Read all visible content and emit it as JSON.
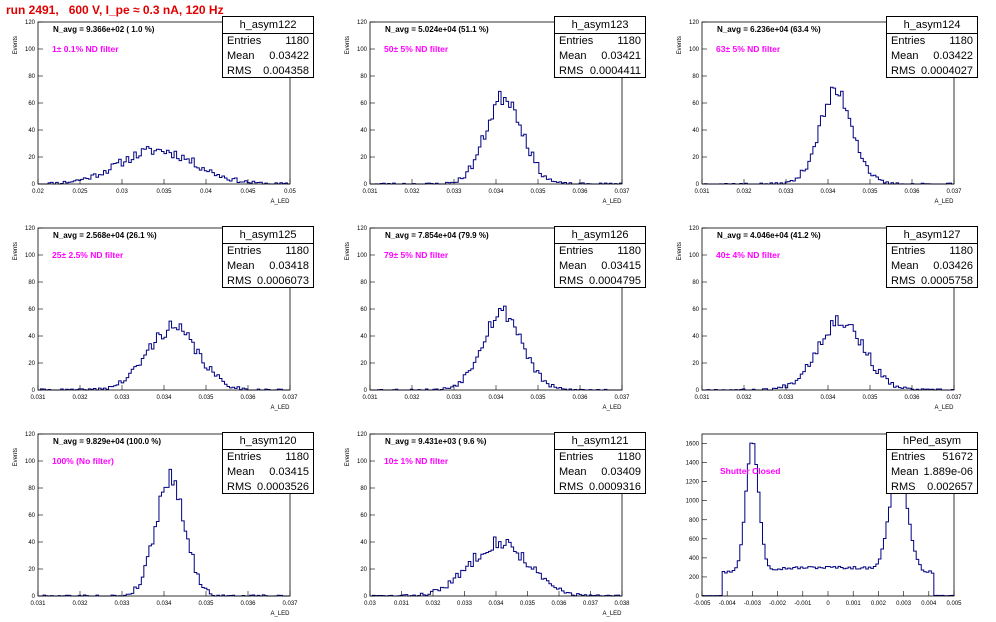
{
  "run_title": "run 2491,   600 V, I_pe ≈ 0.3 nA, 120 Hz",
  "colors": {
    "histogram": "#000080",
    "note": "#ff00ff",
    "run_title": "#e00000"
  },
  "stat_labels": {
    "entries": "Entries",
    "mean": "Mean",
    "rms": "RMS"
  },
  "chart_data": [
    {
      "type": "bar",
      "name": "h_asym122",
      "navg": "N_avg = 9.366e+02 ( 1.0 %)",
      "note": "1± 0.1% ND filter",
      "stats": {
        "entries": "1180",
        "mean": "0.03422",
        "rms": "0.004358"
      },
      "ylabel": "Events",
      "xlabel": "A_LED",
      "xlim": [
        0.02,
        0.05
      ],
      "ylim": [
        0,
        120
      ],
      "xticks": [
        0.02,
        0.025,
        0.03,
        0.035,
        0.04,
        0.045,
        0.05
      ],
      "xticklabels": [
        "0.02",
        "0.025",
        "0.03",
        "0.035",
        "0.04",
        "0.045",
        "0.05"
      ],
      "yticks": [
        0,
        20,
        40,
        60,
        80,
        100,
        120
      ],
      "mu": 0.0342,
      "sigma": 0.0045,
      "peak": 25,
      "seed": 11
    },
    {
      "type": "bar",
      "name": "h_asym123",
      "navg": "N_avg = 5.024e+04 (51.1 %)",
      "note": "50± 5% ND filter",
      "stats": {
        "entries": "1180",
        "mean": "0.03421",
        "rms": "0.0004411"
      },
      "ylabel": "Events",
      "xlabel": "A_LED",
      "xlim": [
        0.031,
        0.037
      ],
      "ylim": [
        0,
        120
      ],
      "xticks": [
        0.031,
        0.032,
        0.033,
        0.034,
        0.035,
        0.036,
        0.037
      ],
      "xticklabels": [
        "0.031",
        "0.032",
        "0.033",
        "0.034",
        "0.035",
        "0.036",
        "0.037"
      ],
      "yticks": [
        0,
        20,
        40,
        60,
        80,
        100,
        120
      ],
      "mu": 0.0342,
      "sigma": 0.00044,
      "peak": 65,
      "seed": 23
    },
    {
      "type": "bar",
      "name": "h_asym124",
      "navg": "N_avg = 6.236e+04 (63.4 %)",
      "note": "63± 5% ND filter",
      "stats": {
        "entries": "1180",
        "mean": "0.03422",
        "rms": "0.0004027"
      },
      "ylabel": "Events",
      "xlabel": "A_LED",
      "xlim": [
        0.031,
        0.037
      ],
      "ylim": [
        0,
        120
      ],
      "xticks": [
        0.031,
        0.032,
        0.033,
        0.034,
        0.035,
        0.036,
        0.037
      ],
      "xticklabels": [
        "0.031",
        "0.032",
        "0.033",
        "0.034",
        "0.035",
        "0.036",
        "0.037"
      ],
      "yticks": [
        0,
        20,
        40,
        60,
        80,
        100,
        120
      ],
      "mu": 0.0342,
      "sigma": 0.0004,
      "peak": 68,
      "seed": 37
    },
    {
      "type": "bar",
      "name": "h_asym125",
      "navg": "N_avg = 2.568e+04 (26.1 %)",
      "note": "25± 2.5% ND filter",
      "stats": {
        "entries": "1180",
        "mean": "0.03418",
        "rms": "0.0006073"
      },
      "ylabel": "Events",
      "xlabel": "A_LED",
      "xlim": [
        0.031,
        0.037
      ],
      "ylim": [
        0,
        120
      ],
      "xticks": [
        0.031,
        0.032,
        0.033,
        0.034,
        0.035,
        0.036,
        0.037
      ],
      "xticklabels": [
        "0.031",
        "0.032",
        "0.033",
        "0.034",
        "0.035",
        "0.036",
        "0.037"
      ],
      "yticks": [
        0,
        20,
        40,
        60,
        80,
        100,
        120
      ],
      "mu": 0.0342,
      "sigma": 0.0006,
      "peak": 46,
      "seed": 41
    },
    {
      "type": "bar",
      "name": "h_asym126",
      "navg": "N_avg = 7.854e+04 (79.9 %)",
      "note": "79± 5% ND filter",
      "stats": {
        "entries": "1180",
        "mean": "0.03415",
        "rms": "0.0004795"
      },
      "ylabel": "Events",
      "xlabel": "A_LED",
      "xlim": [
        0.031,
        0.037
      ],
      "ylim": [
        0,
        120
      ],
      "xticks": [
        0.031,
        0.032,
        0.033,
        0.034,
        0.035,
        0.036,
        0.037
      ],
      "xticklabels": [
        "0.031",
        "0.032",
        "0.033",
        "0.034",
        "0.035",
        "0.036",
        "0.037"
      ],
      "yticks": [
        0,
        20,
        40,
        60,
        80,
        100,
        120
      ],
      "mu": 0.03415,
      "sigma": 0.00048,
      "peak": 58,
      "seed": 53
    },
    {
      "type": "bar",
      "name": "h_asym127",
      "navg": "N_avg = 4.046e+04 (41.2 %)",
      "note": "40± 4% ND filter",
      "stats": {
        "entries": "1180",
        "mean": "0.03426",
        "rms": "0.0005758"
      },
      "ylabel": "Events",
      "xlabel": "A_LED",
      "xlim": [
        0.031,
        0.037
      ],
      "ylim": [
        0,
        120
      ],
      "xticks": [
        0.031,
        0.032,
        0.033,
        0.034,
        0.035,
        0.036,
        0.037
      ],
      "xticklabels": [
        "0.031",
        "0.032",
        "0.033",
        "0.034",
        "0.035",
        "0.036",
        "0.037"
      ],
      "yticks": [
        0,
        20,
        40,
        60,
        80,
        100,
        120
      ],
      "mu": 0.0343,
      "sigma": 0.00055,
      "peak": 52,
      "seed": 67
    },
    {
      "type": "bar",
      "name": "h_asym120",
      "navg": "N_avg = 9.829e+04 (100.0 %)",
      "note": "100% (No filter)",
      "stats": {
        "entries": "1180",
        "mean": "0.03415",
        "rms": "0.0003526"
      },
      "ylabel": "Events",
      "xlabel": "A_LED",
      "xlim": [
        0.031,
        0.037
      ],
      "ylim": [
        0,
        120
      ],
      "xticks": [
        0.031,
        0.032,
        0.033,
        0.034,
        0.035,
        0.036,
        0.037
      ],
      "xticklabels": [
        "0.031",
        "0.032",
        "0.033",
        "0.034",
        "0.035",
        "0.036",
        "0.037"
      ],
      "yticks": [
        0,
        20,
        40,
        60,
        80,
        100,
        120
      ],
      "mu": 0.03415,
      "sigma": 0.00035,
      "peak": 88,
      "seed": 79
    },
    {
      "type": "bar",
      "name": "h_asym121",
      "navg": "N_avg = 9.431e+03 ( 9.6 %)",
      "note": "10± 1% ND filter",
      "stats": {
        "entries": "1180",
        "mean": "0.03409",
        "rms": "0.0009316"
      },
      "ylabel": "Events",
      "xlabel": "A_LED",
      "xlim": [
        0.03,
        0.038
      ],
      "ylim": [
        0,
        120
      ],
      "xticks": [
        0.03,
        0.031,
        0.032,
        0.033,
        0.034,
        0.035,
        0.036,
        0.037,
        0.038
      ],
      "xticklabels": [
        "0.03",
        "0.031",
        "0.032",
        "0.033",
        "0.034",
        "0.035",
        "0.036",
        "0.037",
        "0.038"
      ],
      "yticks": [
        0,
        20,
        40,
        60,
        80,
        100,
        120
      ],
      "mu": 0.0341,
      "sigma": 0.00092,
      "peak": 40,
      "seed": 83
    },
    {
      "type": "bar",
      "name": "hPed_asym",
      "navg": "",
      "note": "Shutter Closed",
      "stats": {
        "entries": "51672",
        "mean": "1.889e-06",
        "rms": "0.002657"
      },
      "ylabel": "",
      "xlabel": "",
      "xlim": [
        -0.005,
        0.005
      ],
      "ylim": [
        0,
        1700
      ],
      "xticks": [
        -0.005,
        -0.004,
        -0.003,
        -0.002,
        -0.001,
        0,
        0.001,
        0.002,
        0.003,
        0.004,
        0.005
      ],
      "xticklabels": [
        "-0.005",
        "-0.004",
        "-0.003",
        "-0.002",
        "-0.001",
        "0",
        "0.001",
        "0.002",
        "0.003",
        "0.004",
        "0.005"
      ],
      "yticks": [
        0,
        200,
        400,
        600,
        800,
        1000,
        1200,
        1400,
        1600
      ],
      "peaks": [
        {
          "mu": -0.003,
          "sigma": 0.00025,
          "amp": 1350
        },
        {
          "mu": 0.0028,
          "sigma": 0.00035,
          "amp": 1100
        }
      ],
      "baseline": 300,
      "seed": 97
    }
  ]
}
